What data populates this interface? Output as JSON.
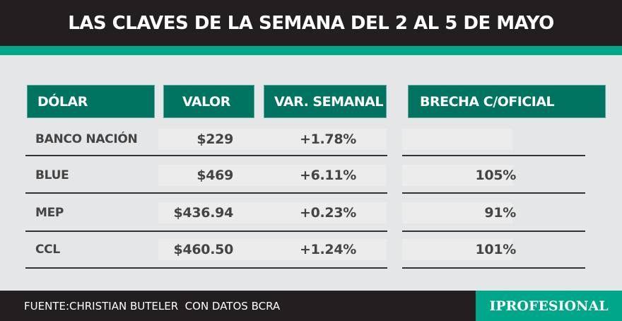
{
  "title": "LAS CLAVES DE LA SEMANA DEL 2 AL 5 DE MAYO",
  "headers": [
    "DÓLAR",
    "VALOR",
    "VAR. SEMANAL",
    "BRECHA C/OFICIAL"
  ],
  "rows": [
    {
      "name": "BANCO NACIÓN",
      "valor": "$229",
      "var": "+1.78%",
      "brecha": ""
    },
    {
      "name": "BLUE",
      "valor": "$469",
      "var": "+6.11%",
      "brecha": "105%"
    },
    {
      "name": "MEP",
      "valor": "$436.94",
      "var": "+0.23%",
      "brecha": "91%"
    },
    {
      "name": "CCL",
      "valor": "$460.50",
      "var": "+1.24%",
      "brecha": "101%"
    }
  ],
  "footer": {
    "source": "FUENTE:CHRISTIAN BUTELER  CON DATOS BCRA",
    "logo": "IPROFESIONAL"
  },
  "colors": {
    "header": "#007461",
    "accent": "#00a68a",
    "dark": "#231f20"
  }
}
